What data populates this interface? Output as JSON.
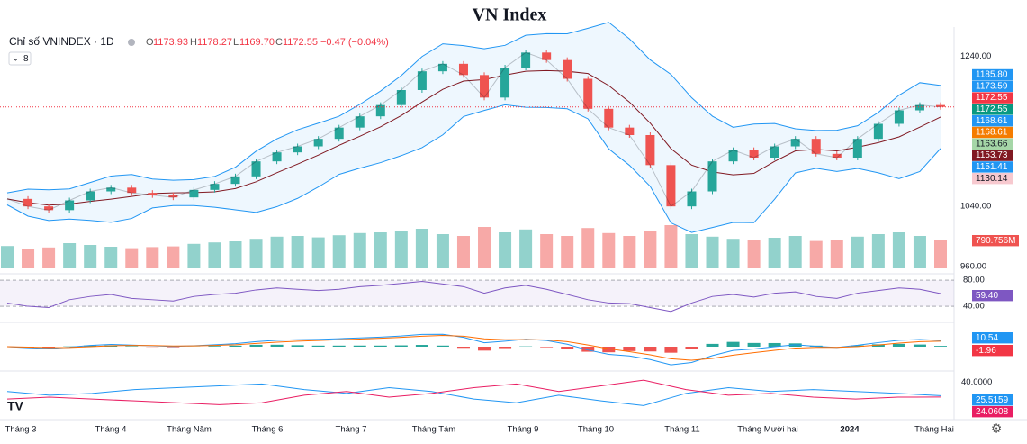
{
  "chart_data": {
    "type": "line",
    "title": "VN Index",
    "header": {
      "symbol": "Chỉ số VNINDEX · 1D",
      "o_key": "O",
      "open": "1173.93",
      "h_key": "H",
      "high": "1178.27",
      "l_key": "L",
      "low": "1169.70",
      "c_key": "C",
      "close": "1172.55",
      "change": "−0.47 (−0.04%)",
      "indicators": "8"
    },
    "series": [
      {
        "name": "VNINDEX",
        "color": "#26a69a",
        "down_color": "#ef5350",
        "values": [
          1050,
          1040,
          1035,
          1048,
          1060,
          1065,
          1058,
          1055,
          1052,
          1062,
          1070,
          1080,
          1100,
          1112,
          1120,
          1130,
          1145,
          1160,
          1175,
          1195,
          1220,
          1230,
          1215,
          1185,
          1225,
          1245,
          1235,
          1210,
          1170,
          1145,
          1135,
          1095,
          1040,
          1060,
          1100,
          1115,
          1105,
          1120,
          1130,
          1110,
          1105,
          1130,
          1150,
          1168,
          1175,
          1172.55
        ]
      }
    ],
    "ylim": [
      955,
      1273
    ],
    "yticks": [
      {
        "value": 1240,
        "label": "1240.00"
      },
      {
        "value": 1040,
        "label": "1040.00"
      },
      {
        "value": 960,
        "label": "960.00"
      }
    ],
    "price_labels": [
      {
        "value": 1185.8,
        "label": "1185.80",
        "color": "#2196f3"
      },
      {
        "value": 1173.59,
        "label": "1173.59",
        "color": "#2196f3"
      },
      {
        "value": 1172.55,
        "label": "1172.55",
        "color": "#f23645"
      },
      {
        "value": 1172.55,
        "label": "1172.55",
        "color": "#089981"
      },
      {
        "value": 1168.61,
        "label": "1168.61",
        "color": "#2196f3"
      },
      {
        "value": 1168.61,
        "label": "1168.61",
        "color": "#f57c00"
      },
      {
        "value": 1163.66,
        "label": "1163.66",
        "color": "#a5d6a7"
      },
      {
        "value": 1153.73,
        "label": "1153.73",
        "color": "#801922"
      },
      {
        "value": 1151.41,
        "label": "1151.41",
        "color": "#2196f3"
      },
      {
        "value": 1130.14,
        "label": "1130.14",
        "color": "#f7c9cf"
      }
    ],
    "volume": {
      "values": [
        620,
        540,
        580,
        700,
        650,
        600,
        560,
        590,
        610,
        680,
        720,
        750,
        820,
        880,
        900,
        860,
        920,
        980,
        1000,
        1050,
        1100,
        950,
        900,
        1150,
        1000,
        1080,
        950,
        900,
        1120,
        980,
        900,
        1050,
        1200,
        950,
        880,
        820,
        780,
        850,
        900,
        760,
        800,
        880,
        950,
        1000,
        900,
        790.756
      ],
      "label": "790.756M",
      "max": 1200
    },
    "rsi": {
      "values": [
        45,
        40,
        38,
        50,
        55,
        58,
        52,
        50,
        48,
        55,
        58,
        60,
        65,
        68,
        66,
        64,
        66,
        70,
        72,
        75,
        78,
        74,
        70,
        60,
        68,
        72,
        66,
        58,
        50,
        45,
        44,
        38,
        32,
        45,
        55,
        58,
        54,
        60,
        62,
        55,
        52,
        60,
        64,
        68,
        66,
        59.4
      ],
      "ylim": [
        18,
        87
      ],
      "yticks": [
        {
          "value": 80,
          "label": "80.00"
        },
        {
          "value": 40,
          "label": "40.00"
        }
      ],
      "current": {
        "value": 59.4,
        "label": "59.40"
      },
      "color": "#7e57c2"
    },
    "macd": {
      "labels": [
        10.54,
        -1.96
      ],
      "colors": [
        "#2196f3",
        "#f23645"
      ]
    },
    "dmi": {
      "series": [
        {
          "color": "#2196f3",
          "values": [
            30,
            26,
            28,
            32,
            34,
            36,
            38,
            32,
            28,
            34,
            30,
            22,
            18,
            26,
            20,
            15,
            28,
            34,
            30,
            32,
            30,
            28,
            25.5159
          ]
        },
        {
          "color": "#e91e63",
          "values": [
            22,
            24,
            22,
            20,
            18,
            16,
            18,
            26,
            30,
            24,
            28,
            34,
            38,
            30,
            36,
            42,
            32,
            26,
            28,
            24,
            22,
            24,
            24.0608
          ]
        }
      ],
      "ylim": [
        2,
        46
      ],
      "yticks": [
        {
          "value": 40,
          "label": "40.0000"
        }
      ]
    },
    "x_labels": [
      "Tháng 3",
      "Tháng 4",
      "Tháng Năm",
      "Tháng 6",
      "Tháng 7",
      "Tháng Tám",
      "Tháng 9",
      "Tháng 10",
      "Tháng 11",
      "Tháng Mười hai",
      "2024",
      "Tháng Hai"
    ]
  }
}
